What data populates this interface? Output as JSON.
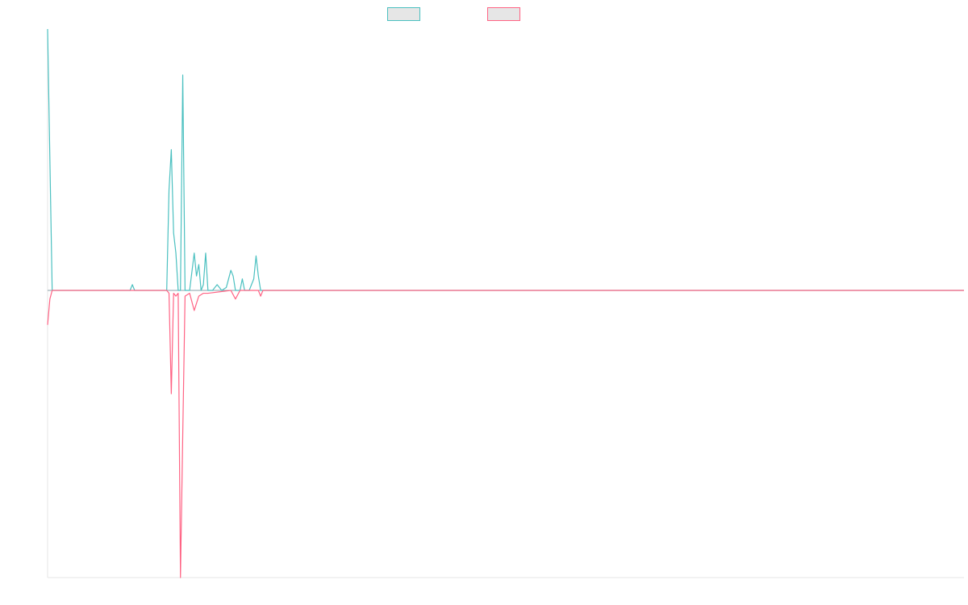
{
  "chart_data": {
    "type": "line",
    "title": "",
    "xlabel": "",
    "ylabel": "",
    "grid": false,
    "legend_placement": "top-center",
    "xlim": [
      0,
      200
    ],
    "ylim": [
      -100,
      91
    ],
    "colors": {
      "series_a": "#4bc0c0",
      "series_b": "#ff6384",
      "legend_fill": "#e6e6e6",
      "axis": "#e5e5e5",
      "zero_line": "#8aa0aa"
    },
    "series": [
      {
        "name": "",
        "color": "#4bc0c0",
        "points": [
          [
            0,
            91
          ],
          [
            1,
            0
          ],
          [
            18,
            0
          ],
          [
            18.5,
            2
          ],
          [
            19,
            0
          ],
          [
            26,
            0
          ],
          [
            26.5,
            35
          ],
          [
            27,
            49
          ],
          [
            27.5,
            20
          ],
          [
            28,
            13
          ],
          [
            28.5,
            0
          ],
          [
            29,
            0
          ],
          [
            29.5,
            75
          ],
          [
            30,
            0
          ],
          [
            31,
            0
          ],
          [
            32,
            13
          ],
          [
            32.5,
            5
          ],
          [
            33,
            9
          ],
          [
            33.5,
            0
          ],
          [
            34,
            2
          ],
          [
            34.5,
            13
          ],
          [
            35,
            0
          ],
          [
            36,
            0
          ],
          [
            37,
            2
          ],
          [
            38,
            0
          ],
          [
            39,
            1
          ],
          [
            40,
            7
          ],
          [
            40.5,
            5
          ],
          [
            41,
            0
          ],
          [
            42,
            0
          ],
          [
            42.5,
            4
          ],
          [
            43,
            0
          ],
          [
            44,
            0
          ],
          [
            45,
            4
          ],
          [
            45.5,
            12
          ],
          [
            46,
            5
          ],
          [
            46.5,
            0
          ],
          [
            200,
            0
          ]
        ]
      },
      {
        "name": "",
        "color": "#ff6384",
        "points": [
          [
            0,
            -12
          ],
          [
            0.5,
            -3
          ],
          [
            1,
            0
          ],
          [
            26,
            0
          ],
          [
            26.5,
            -1
          ],
          [
            27,
            -36
          ],
          [
            27.5,
            -1
          ],
          [
            28,
            -2
          ],
          [
            28.5,
            -1
          ],
          [
            29,
            -100
          ],
          [
            29.5,
            -50
          ],
          [
            30,
            -2
          ],
          [
            31,
            -1
          ],
          [
            32,
            -7
          ],
          [
            33,
            -2
          ],
          [
            34,
            -1
          ],
          [
            35,
            -1
          ],
          [
            40,
            0
          ],
          [
            41,
            -3
          ],
          [
            42,
            0
          ],
          [
            46,
            0
          ],
          [
            46.5,
            -2
          ],
          [
            47,
            0
          ],
          [
            49,
            0
          ],
          [
            200,
            0
          ]
        ]
      }
    ]
  }
}
